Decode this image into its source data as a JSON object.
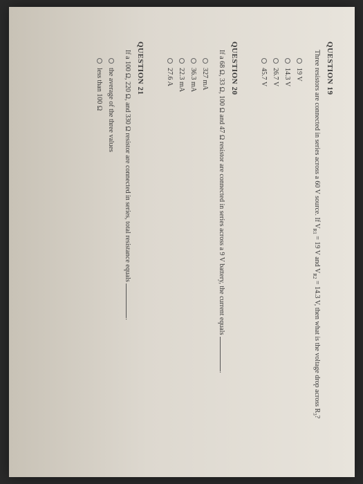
{
  "q19": {
    "head": "QUESTION 19",
    "body_prefix": "Three resistors are connected in series across a 60 V source. If V",
    "body_sub1": "R1",
    "body_mid1": " = 19 V and V",
    "body_sub2": "R2",
    "body_mid2": " = 14.3 V, then what is the voltage drop across R",
    "body_sub3": "3",
    "body_suffix": "?",
    "opts": [
      "19 V",
      "14.3 V",
      "26.7 V",
      "45.7 V"
    ]
  },
  "q20": {
    "head": "QUESTION 20",
    "body": "If a 68 Ω, 33 Ω, 100 Ω and 47 Ω resistor are connected in series across a 9 V battery, the current equals ",
    "opts": [
      "327 mA",
      "36.3 mA",
      "22.3 mA",
      "27.6 A"
    ]
  },
  "q21": {
    "head": "QUESTION 21",
    "body": "If a 100 Ω, 220 Ω, and 330 Ω resistor are connected in series, total resistance equals ",
    "opts": [
      "the average of the three values",
      "less than 100 Ω"
    ]
  }
}
